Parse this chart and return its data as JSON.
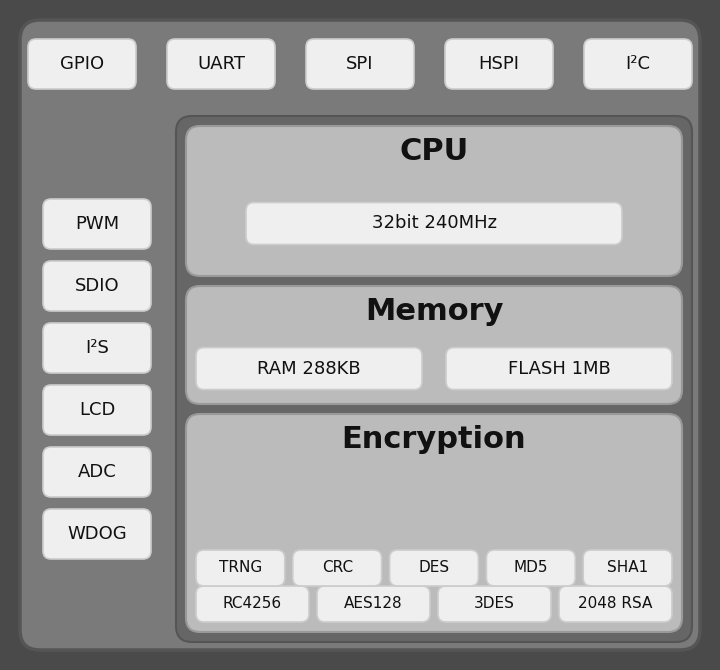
{
  "bg_outer": "#4a4a4a",
  "bg_main": "#7a7a7a",
  "bg_right_panel": "#666666",
  "section_fill": "#bbbbbb",
  "box_fill": "#efefef",
  "box_edge": "#cccccc",
  "text_color": "#111111",
  "top_row": [
    "GPIO",
    "UART",
    "SPI",
    "HSPI",
    "I²C"
  ],
  "left_col": [
    "PWM",
    "SDIO",
    "I²S",
    "LCD",
    "ADC",
    "WDOG"
  ],
  "cpu_title": "CPU",
  "cpu_sub": "32bit 240MHz",
  "mem_title": "Memory",
  "mem_subs": [
    "RAM 288KB",
    "FLASH 1MB"
  ],
  "enc_title": "Encryption",
  "enc_row1": [
    "TRNG",
    "CRC",
    "DES",
    "MD5",
    "SHA1"
  ],
  "enc_row2": [
    "RC4256",
    "AES128",
    "3DES",
    "2048 RSA"
  ],
  "fig_w": 7.2,
  "fig_h": 6.7,
  "dpi": 100
}
